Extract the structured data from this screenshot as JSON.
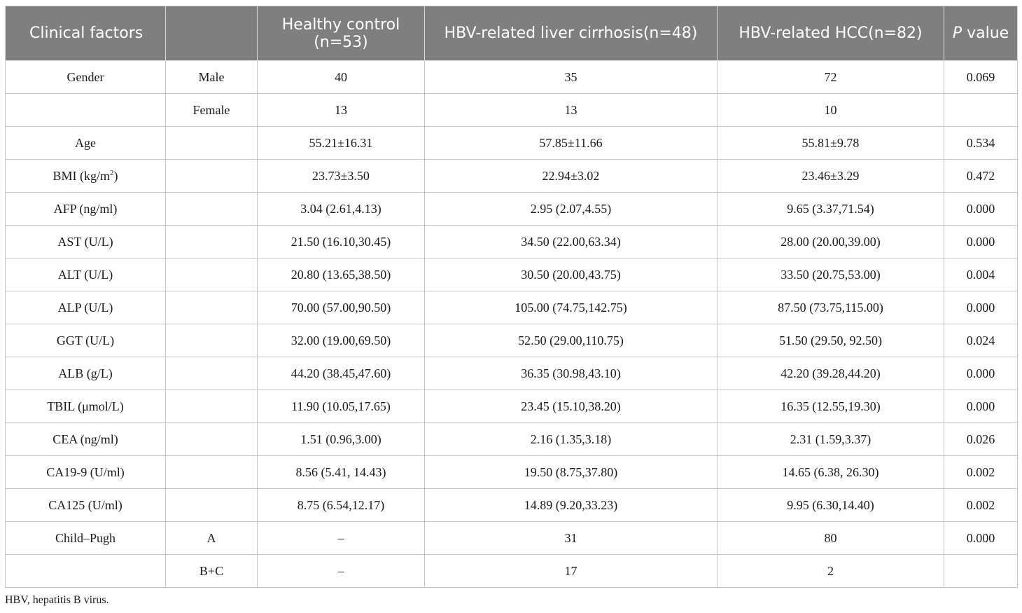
{
  "header": {
    "col1": "Clinical factors",
    "col2": "",
    "col3_line1": "Healthy control",
    "col3_line2": "(n=53)",
    "col4": "HBV-related liver cirrhosis(n=48)",
    "col5": "HBV-related HCC(n=82)",
    "col6_p": "P",
    "col6_rest": " value"
  },
  "rows": [
    {
      "factor": "Gender",
      "sub": "Male",
      "hc": "40",
      "lc": "35",
      "hcc": "72",
      "p": "0.069"
    },
    {
      "factor": "",
      "sub": "Female",
      "hc": "13",
      "lc": "13",
      "hcc": "10",
      "p": ""
    },
    {
      "factor": "Age",
      "sub": "",
      "hc": "55.21±16.31",
      "lc": "57.85±11.66",
      "hcc": "55.81±9.78",
      "p": "0.534"
    },
    {
      "factor": "BMI (kg/m",
      "factor_sup": "2",
      "factor_end": ")",
      "sub": "",
      "hc": "23.73±3.50",
      "lc": "22.94±3.02",
      "hcc": "23.46±3.29",
      "p": "0.472"
    },
    {
      "factor": "AFP (ng/ml)",
      "sub": "",
      "hc": "3.04 (2.61,4.13)",
      "lc": "2.95 (2.07,4.55)",
      "hcc": "9.65 (3.37,71.54)",
      "p": "0.000"
    },
    {
      "factor": "AST (U/L)",
      "sub": "",
      "hc": "21.50 (16.10,30.45)",
      "lc": "34.50 (22.00,63.34)",
      "hcc": "28.00 (20.00,39.00)",
      "p": "0.000"
    },
    {
      "factor": "ALT (U/L)",
      "sub": "",
      "hc": "20.80 (13.65,38.50)",
      "lc": "30.50 (20.00,43.75)",
      "hcc": "33.50 (20.75,53.00)",
      "p": "0.004"
    },
    {
      "factor": "ALP (U/L)",
      "sub": "",
      "hc": "70.00 (57.00,90.50)",
      "lc": "105.00 (74.75,142.75)",
      "hcc": "87.50 (73.75,115.00)",
      "p": "0.000"
    },
    {
      "factor": "GGT (U/L)",
      "sub": "",
      "hc": "32.00 (19.00,69.50)",
      "lc": "52.50 (29.00,110.75)",
      "hcc": "51.50 (29.50, 92.50)",
      "p": "0.024"
    },
    {
      "factor": "ALB (g/L)",
      "sub": "",
      "hc": "44.20 (38.45,47.60)",
      "lc": "36.35 (30.98,43.10)",
      "hcc": "42.20 (39.28,44.20)",
      "p": "0.000"
    },
    {
      "factor": "TBIL (μmol/L)",
      "sub": "",
      "hc": "11.90 (10.05,17.65)",
      "lc": "23.45 (15.10,38.20)",
      "hcc": "16.35 (12.55,19.30)",
      "p": "0.000"
    },
    {
      "factor": "CEA (ng/ml)",
      "sub": "",
      "hc": "1.51 (0.96,3.00)",
      "lc": "2.16 (1.35,3.18)",
      "hcc": "2.31 (1.59,3.37)",
      "p": "0.026"
    },
    {
      "factor": "CA19-9 (U/ml)",
      "sub": "",
      "hc": "8.56 (5.41, 14.43)",
      "lc": "19.50 (8.75,37.80)",
      "hcc": "14.65 (6.38, 26.30)",
      "p": "0.002"
    },
    {
      "factor": "CA125 (U/ml)",
      "sub": "",
      "hc": "8.75 (6.54,12.17)",
      "lc": "14.89 (9.20,33.23)",
      "hcc": "9.95 (6.30,14.40)",
      "p": "0.002"
    },
    {
      "factor": "Child–Pugh",
      "sub": "A",
      "hc": "–",
      "lc": "31",
      "hcc": "80",
      "p": "0.000"
    },
    {
      "factor": "",
      "sub": "B+C",
      "hc": "–",
      "lc": "17",
      "hcc": "2",
      "p": ""
    }
  ],
  "footnote": "HBV, hepatitis B virus."
}
